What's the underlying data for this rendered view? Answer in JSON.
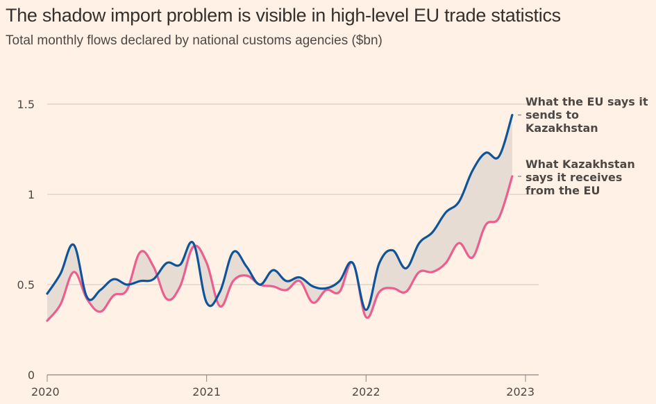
{
  "header": {
    "title": "The shadow import problem is visible in high-level EU trade statistics",
    "subtitle": "Total monthly flows declared by national customs agencies ($bn)"
  },
  "colors": {
    "background": "#fff1e5",
    "eu_line": "#0f5499",
    "kz_line": "#eb5e8d",
    "gap_fill": "#e6dcd4",
    "gridline": "#cec6c0",
    "axis": "#8a8580",
    "text": "#33302e"
  },
  "chart_data": {
    "type": "line",
    "title": "The shadow import problem is visible in high-level EU trade statistics",
    "subtitle": "Total monthly flows declared by national customs agencies ($bn)",
    "xlabel": "",
    "ylabel": "",
    "ylim": [
      0,
      1.5
    ],
    "xlim": [
      "2020-01",
      "2023-01"
    ],
    "grid": true,
    "y_ticks": [
      {
        "value": 0,
        "label": "0"
      },
      {
        "value": 0.5,
        "label": "0.5"
      },
      {
        "value": 1,
        "label": "1"
      },
      {
        "value": 1.5,
        "label": "1.5"
      }
    ],
    "x_ticks": [
      {
        "month_index": 0,
        "label": "2020"
      },
      {
        "month_index": 12,
        "label": "2021"
      },
      {
        "month_index": 24,
        "label": "2022"
      },
      {
        "month_index": 36,
        "label": "2023"
      }
    ],
    "x": [
      "2020-01",
      "2020-02",
      "2020-03",
      "2020-04",
      "2020-05",
      "2020-06",
      "2020-07",
      "2020-08",
      "2020-09",
      "2020-10",
      "2020-11",
      "2020-12",
      "2021-01",
      "2021-02",
      "2021-03",
      "2021-04",
      "2021-05",
      "2021-06",
      "2021-07",
      "2021-08",
      "2021-09",
      "2021-10",
      "2021-11",
      "2021-12",
      "2022-01",
      "2022-02",
      "2022-03",
      "2022-04",
      "2022-05",
      "2022-06",
      "2022-07",
      "2022-08",
      "2022-09",
      "2022-10",
      "2022-11",
      "2022-12"
    ],
    "series": [
      {
        "name": "What the EU says it sends to Kazakhstan",
        "legend_lines": [
          "What the EU says it",
          "sends to",
          "Kazakhstan"
        ],
        "values": [
          0.45,
          0.56,
          0.72,
          0.43,
          0.47,
          0.53,
          0.5,
          0.52,
          0.53,
          0.62,
          0.61,
          0.73,
          0.4,
          0.46,
          0.68,
          0.6,
          0.5,
          0.58,
          0.52,
          0.54,
          0.49,
          0.48,
          0.52,
          0.62,
          0.36,
          0.62,
          0.69,
          0.59,
          0.73,
          0.79,
          0.9,
          0.96,
          1.13,
          1.23,
          1.21,
          1.44
        ]
      },
      {
        "name": "What Kazakhstan says it receives from the EU",
        "legend_lines": [
          "What Kazakhstan",
          "says it receives",
          "from the EU"
        ],
        "values": [
          0.3,
          0.39,
          0.57,
          0.42,
          0.35,
          0.44,
          0.47,
          0.68,
          0.6,
          0.42,
          0.49,
          0.71,
          0.62,
          0.38,
          0.52,
          0.55,
          0.5,
          0.49,
          0.47,
          0.52,
          0.4,
          0.47,
          0.46,
          0.62,
          0.32,
          0.46,
          0.48,
          0.46,
          0.57,
          0.57,
          0.62,
          0.73,
          0.65,
          0.83,
          0.87,
          1.1
        ]
      }
    ]
  }
}
